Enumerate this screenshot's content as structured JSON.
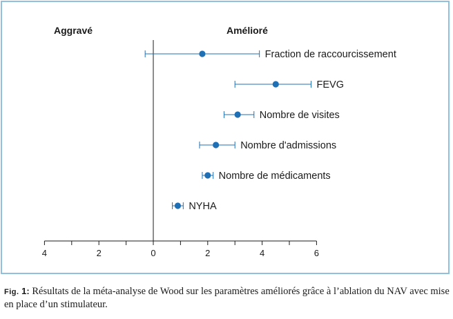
{
  "chart_data": {
    "type": "scatter",
    "title": "",
    "xlabel": "",
    "ylabel": "",
    "xlim": [
      -4,
      6
    ],
    "x_ticks": [
      -4,
      -3,
      -2,
      -1,
      0,
      1,
      2,
      3,
      4,
      5,
      6
    ],
    "x_tick_labels": [
      {
        "value": -4,
        "label": "4"
      },
      {
        "value": -2,
        "label": "2"
      },
      {
        "value": 0,
        "label": "0"
      },
      {
        "value": 2,
        "label": "2"
      },
      {
        "value": 4,
        "label": "4"
      },
      {
        "value": 6,
        "label": "6"
      }
    ],
    "grid": false,
    "headers": {
      "left": "Aggravé",
      "right": "Amélioré"
    },
    "marker_color": "#1f6fb4",
    "points": [
      {
        "label": "Fraction de raccourcissement",
        "x": 1.8,
        "ci_low": -0.3,
        "ci_high": 3.9
      },
      {
        "label": "FEVG",
        "x": 4.5,
        "ci_low": 3.0,
        "ci_high": 5.8
      },
      {
        "label": "Nombre de visites",
        "x": 3.1,
        "ci_low": 2.6,
        "ci_high": 3.7
      },
      {
        "label": "Nombre d'admissions",
        "x": 2.3,
        "ci_low": 1.7,
        "ci_high": 3.0
      },
      {
        "label": "Nombre de médicaments",
        "x": 2.0,
        "ci_low": 1.8,
        "ci_high": 2.2
      },
      {
        "label": "NYHA",
        "x": 0.9,
        "ci_low": 0.7,
        "ci_high": 1.1
      }
    ]
  },
  "caption": {
    "fig_prefix": "Fig.",
    "fig_number": " 1:",
    "text": " Résultats de la méta-analyse de Wood sur les paramètres améliorés grâce à l’ablation du NAV avec mise en place d’un stimulateur."
  }
}
